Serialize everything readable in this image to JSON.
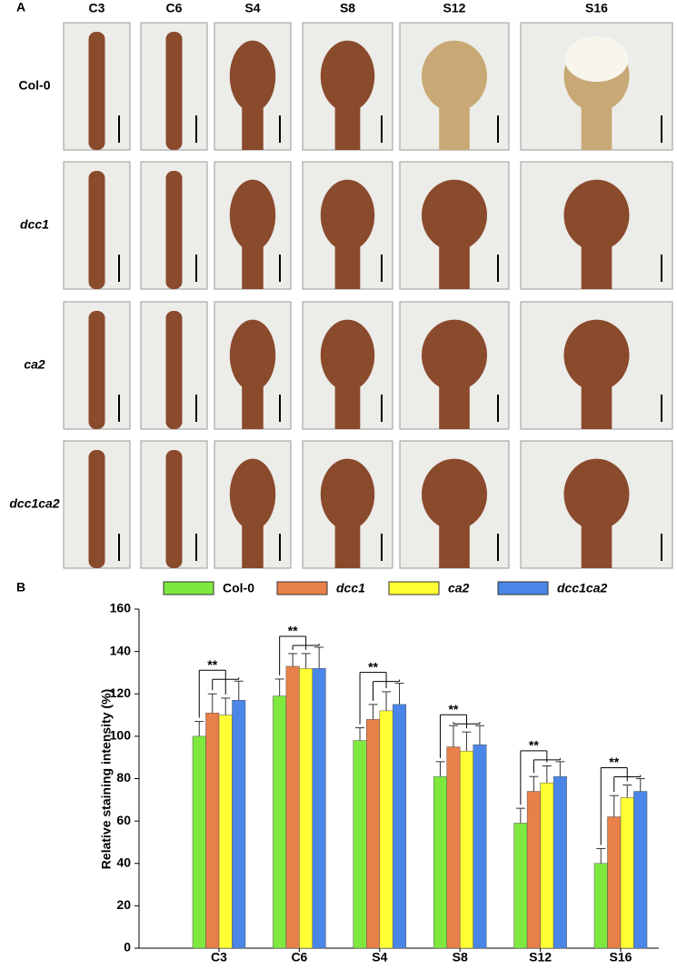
{
  "panel_a": {
    "label": "A",
    "columns": [
      "C3",
      "C6",
      "S4",
      "S8",
      "S12",
      "S16"
    ],
    "rows": [
      "Col-0",
      "dcc1",
      "ca2",
      "dcc1ca2"
    ]
  },
  "panel_b_label": "B",
  "chart_data": {
    "type": "bar",
    "ylabel": "Relative staining intensity (%)",
    "categories": [
      "C3",
      "C6",
      "S4",
      "S8",
      "S12",
      "S16"
    ],
    "series": [
      {
        "name": "Col-0",
        "color": "#7ee83f",
        "values": [
          100,
          119,
          98,
          81,
          59,
          40
        ],
        "errors": [
          7,
          8,
          6,
          7,
          7,
          7
        ]
      },
      {
        "name": "dcc1",
        "color": "#e8804a",
        "values": [
          111,
          133,
          108,
          95,
          74,
          62
        ],
        "errors": [
          9,
          6,
          7,
          10,
          7,
          10
        ]
      },
      {
        "name": "ca2",
        "color": "#ffff33",
        "values": [
          110,
          132,
          112,
          93,
          78,
          71
        ],
        "errors": [
          8,
          7,
          9,
          9,
          8,
          6
        ]
      },
      {
        "name": "dcc1ca2",
        "color": "#4a86e8",
        "values": [
          117,
          132,
          115,
          96,
          81,
          74
        ],
        "errors": [
          9,
          10,
          10,
          9,
          7,
          6
        ]
      }
    ],
    "annotations": [
      "**",
      "**",
      "**",
      "**",
      "**",
      "**"
    ],
    "ylim": [
      0,
      160
    ],
    "yticks": [
      0,
      20,
      40,
      60,
      80,
      100,
      120,
      140,
      160
    ]
  }
}
